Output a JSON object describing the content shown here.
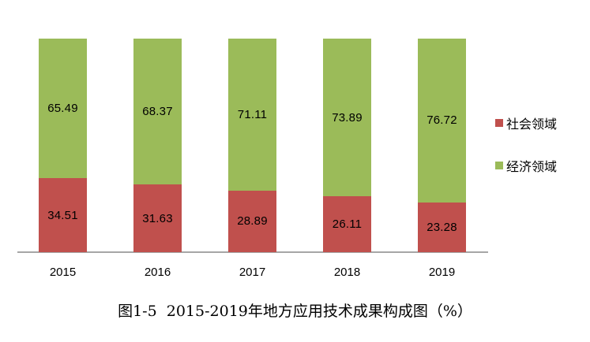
{
  "chart_data": {
    "type": "bar",
    "stacked": true,
    "orientation": "vertical",
    "categories": [
      "2015",
      "2016",
      "2017",
      "2018",
      "2019"
    ],
    "series": [
      {
        "name": "社会领域",
        "color": "#c0504d",
        "values": [
          34.51,
          31.63,
          28.89,
          26.11,
          23.28
        ]
      },
      {
        "name": "经济领域",
        "color": "#9bbb59",
        "values": [
          65.49,
          68.37,
          71.11,
          73.89,
          76.72
        ]
      }
    ],
    "title": "图1-5  2015-2019年地方应用技术成果构成图（%）",
    "xlabel": "",
    "ylabel": "",
    "unit": "%",
    "ylim": [
      0,
      100
    ],
    "grid": false,
    "value_labels": true,
    "legend_position": "right"
  },
  "colors": {
    "background": "#ffffff",
    "axis_line": "#a6a6a6",
    "label_text": "#000000"
  }
}
